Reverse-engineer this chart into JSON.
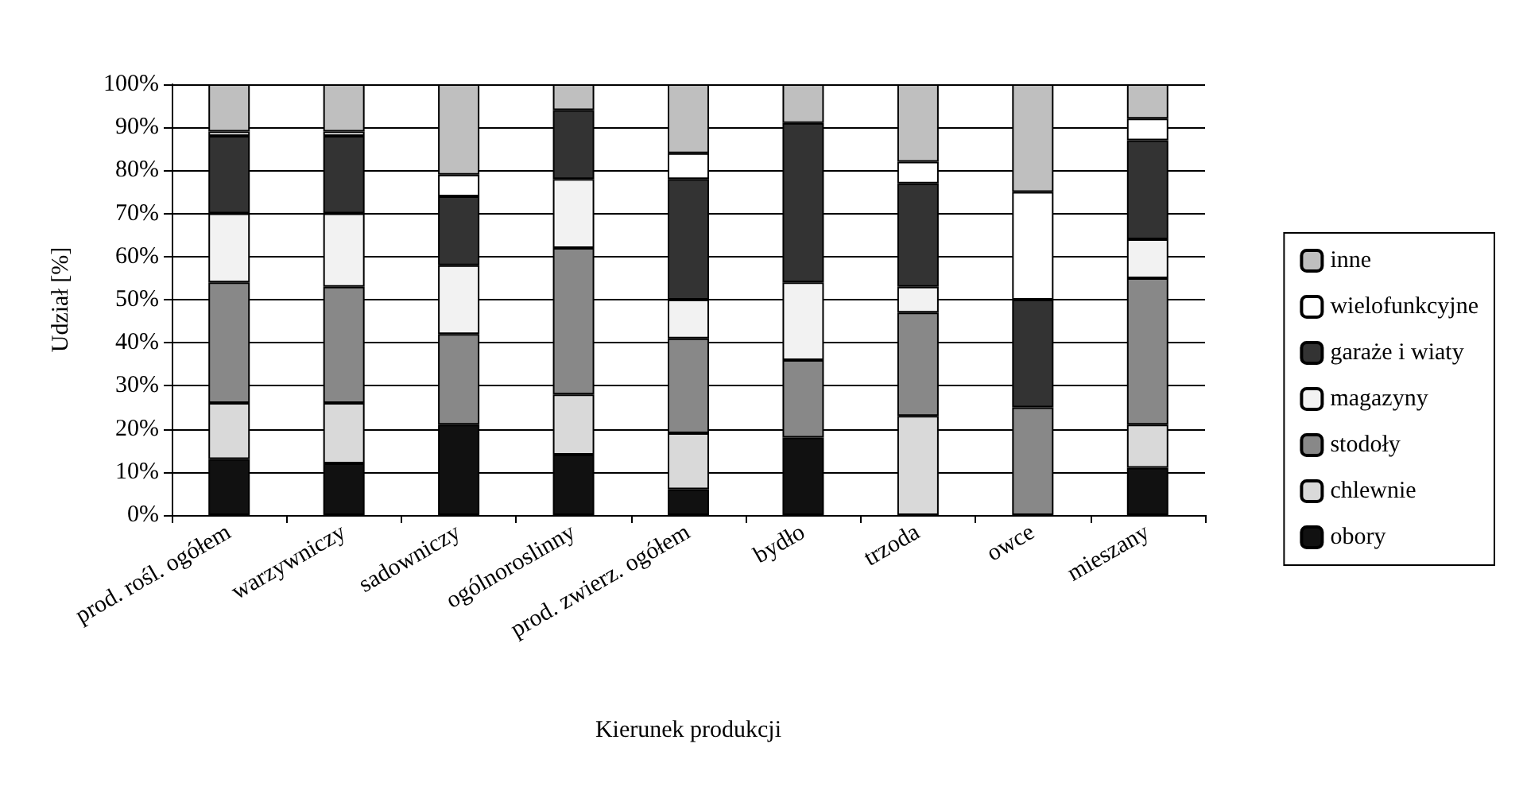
{
  "chart_data": {
    "type": "bar",
    "stacked": true,
    "xlabel": "Kierunek produkcji",
    "ylabel": "Udział [%]",
    "categories": [
      "prod. rośl. ogółem",
      "warzywniczy",
      "sadowniczy",
      "ogólnoroslinny",
      "prod. zwierz. ogółem",
      "bydło",
      "trzoda",
      "owce",
      "mieszany"
    ],
    "series": [
      {
        "name": "obory",
        "color": "#111111",
        "values": [
          13,
          12,
          21,
          14,
          6,
          18,
          0,
          0,
          11
        ]
      },
      {
        "name": "chlewnie",
        "color": "#d9d9d9",
        "values": [
          13,
          14,
          0,
          14,
          13,
          0,
          23,
          0,
          10
        ]
      },
      {
        "name": "stodoły",
        "color": "#888888",
        "values": [
          28,
          27,
          21,
          34,
          22,
          18,
          24,
          25,
          34
        ]
      },
      {
        "name": "magazyny",
        "color": "#f2f2f2",
        "values": [
          16,
          17,
          16,
          16,
          9,
          18,
          6,
          0,
          9
        ]
      },
      {
        "name": "garaże i wiaty",
        "color": "#333333",
        "values": [
          18,
          18,
          16,
          16,
          28,
          37,
          24,
          25,
          23
        ]
      },
      {
        "name": "wielofunkcyjne",
        "color": "#ffffff",
        "values": [
          1,
          1,
          5,
          0,
          6,
          0,
          5,
          25,
          5
        ]
      },
      {
        "name": "inne",
        "color": "#bfbfbf",
        "values": [
          11,
          11,
          21,
          6,
          16,
          9,
          18,
          25,
          8
        ]
      }
    ],
    "ylim": [
      0,
      100
    ],
    "yticks": [
      {
        "value": 0,
        "label": "0%"
      },
      {
        "value": 10,
        "label": "10%"
      },
      {
        "value": 20,
        "label": "20%"
      },
      {
        "value": 30,
        "label": "30%"
      },
      {
        "value": 40,
        "label": "40%"
      },
      {
        "value": 50,
        "label": "50%"
      },
      {
        "value": 60,
        "label": "60%"
      },
      {
        "value": 70,
        "label": "70%"
      },
      {
        "value": 80,
        "label": "80%"
      },
      {
        "value": 90,
        "label": "90%"
      },
      {
        "value": 100,
        "label": "100%"
      }
    ],
    "grid": "y",
    "legend": "right"
  }
}
